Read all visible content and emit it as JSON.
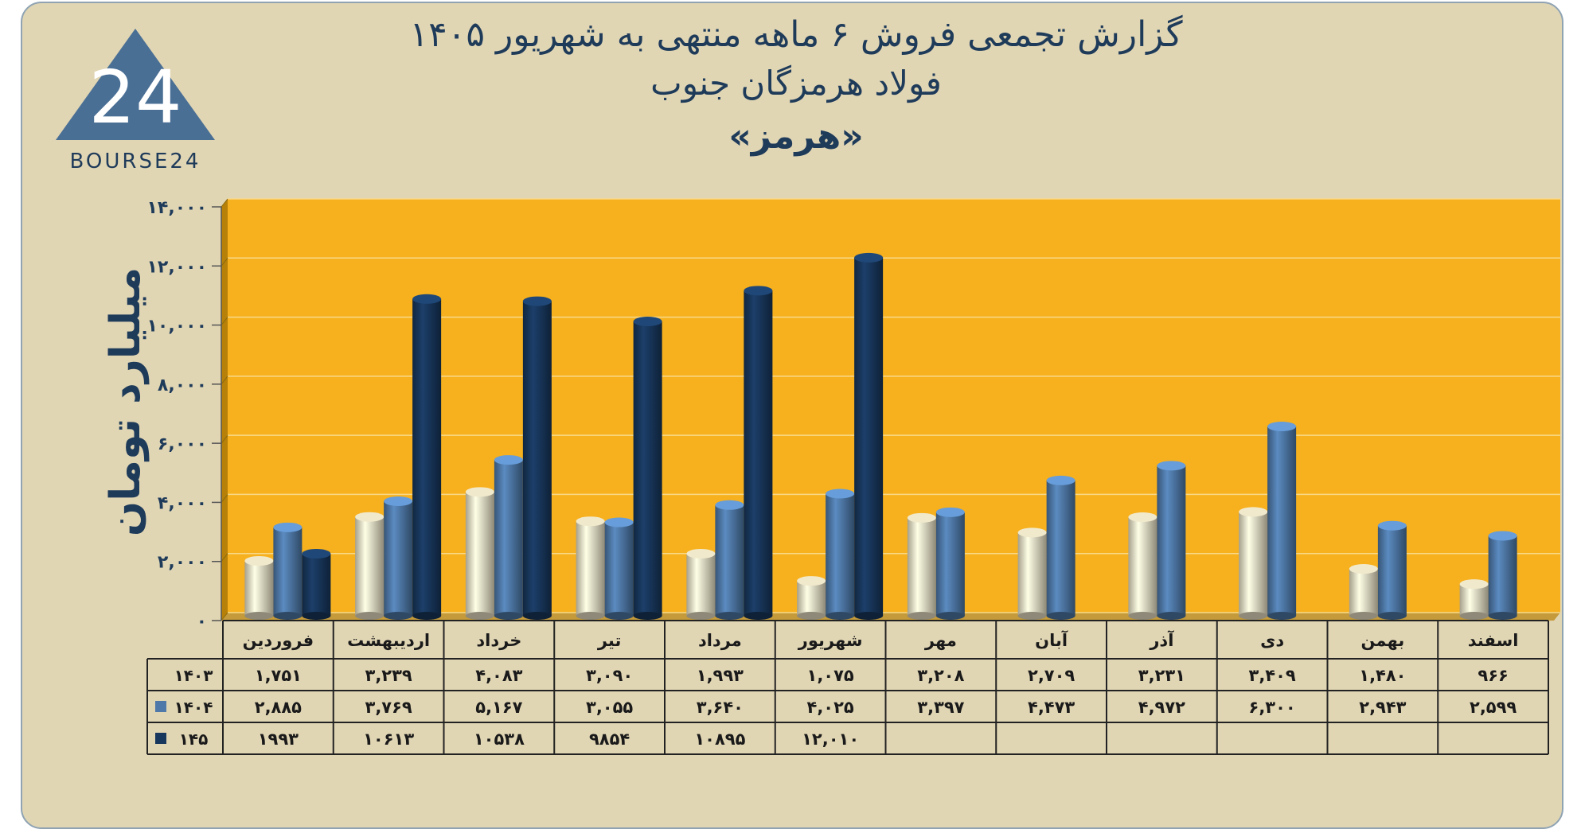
{
  "header": {
    "title": "گزارش تجمعی فروش ۶ ماهه منتهی به شهریور ۱۴۰۵",
    "subtitle": "فولاد هرمزگان جنوب",
    "symbol": "«هرمز»"
  },
  "logo": {
    "text": "BOURSE24",
    "mark": "24"
  },
  "colors": {
    "background": "#e1d6b4",
    "plot_area": "#f7b11e",
    "series_1403": "#ece4c8",
    "series_1404": "#4f79a8",
    "series_145": "#18375c",
    "text": "#1f3b5a"
  },
  "chart_data": {
    "type": "bar",
    "ylabel": "میلیارد تومان",
    "ylim": [
      0,
      14000
    ],
    "yticks": [
      0,
      2000,
      4000,
      6000,
      8000,
      10000,
      12000,
      14000
    ],
    "ytick_labels": [
      "۰",
      "۲,۰۰۰",
      "۴,۰۰۰",
      "۶,۰۰۰",
      "۸,۰۰۰",
      "۱۰,۰۰۰",
      "۱۲,۰۰۰",
      "۱۴,۰۰۰"
    ],
    "grid": true,
    "categories": [
      "فروردین",
      "اردیبهشت",
      "خرداد",
      "تیر",
      "مرداد",
      "شهریور",
      "مهر",
      "آبان",
      "آذر",
      "دی",
      "بهمن",
      "اسفند"
    ],
    "series": [
      {
        "name": "۱۴۰۳",
        "values": [
          1751,
          3239,
          4083,
          3090,
          1993,
          1075,
          3208,
          2709,
          3231,
          3409,
          1480,
          966
        ],
        "labels": [
          "۱,۷۵۱",
          "۳,۲۳۹",
          "۴,۰۸۳",
          "۳,۰۹۰",
          "۱,۹۹۳",
          "۱,۰۷۵",
          "۳,۲۰۸",
          "۲,۷۰۹",
          "۳,۲۳۱",
          "۳,۴۰۹",
          "۱,۴۸۰",
          "۹۶۶"
        ]
      },
      {
        "name": "۱۴۰۴",
        "values": [
          2885,
          3769,
          5167,
          3055,
          3640,
          4025,
          3397,
          4473,
          4972,
          6300,
          2943,
          2599
        ],
        "labels": [
          "۲,۸۸۵",
          "۳,۷۶۹",
          "۵,۱۶۷",
          "۳,۰۵۵",
          "۳,۶۴۰",
          "۴,۰۲۵",
          "۳,۳۹۷",
          "۴,۴۷۳",
          "۴,۹۷۲",
          "۶,۳۰۰",
          "۲,۹۴۳",
          "۲,۵۹۹"
        ]
      },
      {
        "name": "۱۴۵",
        "values": [
          1993,
          10613,
          10538,
          9854,
          10895,
          12010,
          null,
          null,
          null,
          null,
          null,
          null
        ],
        "labels": [
          "۱۹۹۳",
          "۱۰۶۱۳",
          "۱۰۵۳۸",
          "۹۸۵۴",
          "۱۰۸۹۵",
          "۱۲,۰۱۰",
          "",
          "",
          "",
          "",
          "",
          ""
        ]
      }
    ]
  }
}
